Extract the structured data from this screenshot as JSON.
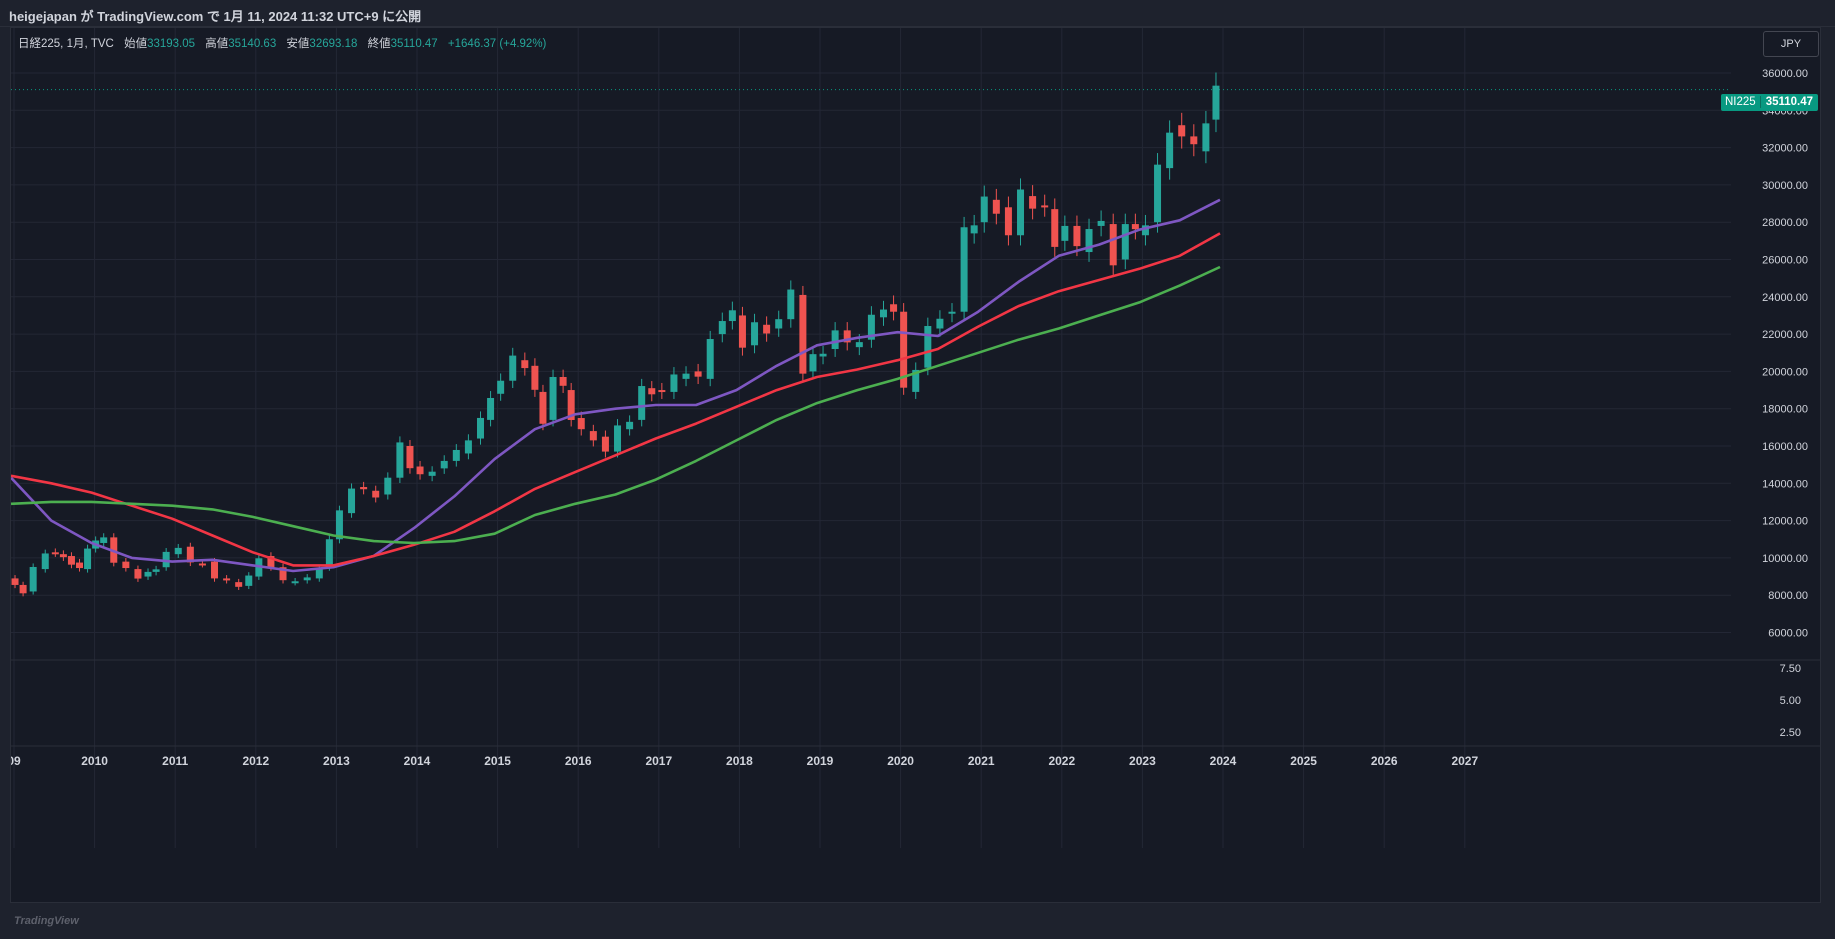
{
  "header": {
    "publisher_line": "heigejapan が TradingView.com で 1月 11, 2024 11:32 UTC+9 に公開"
  },
  "legend": {
    "symbol": "日経225, 1月, TVC",
    "open_label": "始値",
    "open_value": "33193.05",
    "high_label": "高値",
    "high_value": "35140.63",
    "low_label": "安値",
    "low_value": "32693.18",
    "close_label": "終値",
    "close_value": "35110.47",
    "change": "+1646.37 (+4.92%)"
  },
  "currency_button": "JPY",
  "price_label": {
    "symbol": "NI225",
    "value": "35110.47"
  },
  "footer": {
    "logo_text": "TradingView"
  },
  "colors": {
    "background": "#161a25",
    "up": "#26a69a",
    "down": "#ef5350",
    "ma_purple": "#7e57c2",
    "ma_red": "#f23645",
    "ma_green": "#4caf50",
    "text": "#d1d4dc",
    "grid": "#232735"
  },
  "chart_data": {
    "type": "candlestick",
    "x_axis_labels": [
      "09",
      "2010",
      "2011",
      "2012",
      "2013",
      "2014",
      "2015",
      "2016",
      "2017",
      "2018",
      "2019",
      "2020",
      "2021",
      "2022",
      "2023",
      "2024",
      "2025",
      "2026",
      "2027"
    ],
    "y_axis_labels": [
      "36000.00",
      "34000.00",
      "32000.00",
      "30000.00",
      "28000.00",
      "26000.00",
      "24000.00",
      "22000.00",
      "20000.00",
      "18000.00",
      "16000.00",
      "14000.00",
      "12000.00",
      "10000.00",
      "8000.00",
      "6000.00"
    ],
    "y_range": [
      4000,
      37500
    ],
    "lower_pane_labels": [
      "7.50",
      "5.00",
      "2.50"
    ],
    "close_series": [
      {
        "t": 2009.0,
        "v": 8900
      },
      {
        "t": 2009.2,
        "v": 8200
      },
      {
        "t": 2009.35,
        "v": 9400
      },
      {
        "t": 2009.5,
        "v": 10300
      },
      {
        "t": 2009.7,
        "v": 10100
      },
      {
        "t": 2009.9,
        "v": 9400
      },
      {
        "t": 2010.0,
        "v": 10500
      },
      {
        "t": 2010.2,
        "v": 11100
      },
      {
        "t": 2010.35,
        "v": 9800
      },
      {
        "t": 2010.5,
        "v": 9400
      },
      {
        "t": 2010.65,
        "v": 9000
      },
      {
        "t": 2010.85,
        "v": 9500
      },
      {
        "t": 2011.0,
        "v": 10200
      },
      {
        "t": 2011.15,
        "v": 10600
      },
      {
        "t": 2011.3,
        "v": 9700
      },
      {
        "t": 2011.45,
        "v": 9800
      },
      {
        "t": 2011.6,
        "v": 8900
      },
      {
        "t": 2011.75,
        "v": 8700
      },
      {
        "t": 2011.9,
        "v": 8500
      },
      {
        "t": 2012.0,
        "v": 9000
      },
      {
        "t": 2012.15,
        "v": 10100
      },
      {
        "t": 2012.3,
        "v": 9500
      },
      {
        "t": 2012.45,
        "v": 8700
      },
      {
        "t": 2012.6,
        "v": 8800
      },
      {
        "t": 2012.75,
        "v": 8900
      },
      {
        "t": 2012.9,
        "v": 9500
      },
      {
        "t": 2013.0,
        "v": 11000
      },
      {
        "t": 2013.15,
        "v": 12400
      },
      {
        "t": 2013.3,
        "v": 13800
      },
      {
        "t": 2013.45,
        "v": 13600
      },
      {
        "t": 2013.6,
        "v": 13400
      },
      {
        "t": 2013.75,
        "v": 14300
      },
      {
        "t": 2013.9,
        "v": 16000
      },
      {
        "t": 2014.0,
        "v": 14900
      },
      {
        "t": 2014.15,
        "v": 14400
      },
      {
        "t": 2014.3,
        "v": 14800
      },
      {
        "t": 2014.45,
        "v": 15200
      },
      {
        "t": 2014.6,
        "v": 15600
      },
      {
        "t": 2014.75,
        "v": 16400
      },
      {
        "t": 2014.9,
        "v": 17400
      },
      {
        "t": 2015.0,
        "v": 18800
      },
      {
        "t": 2015.15,
        "v": 19500
      },
      {
        "t": 2015.3,
        "v": 20600
      },
      {
        "t": 2015.45,
        "v": 20300
      },
      {
        "t": 2015.55,
        "v": 18900
      },
      {
        "t": 2015.65,
        "v": 17400
      },
      {
        "t": 2015.8,
        "v": 19700
      },
      {
        "t": 2015.9,
        "v": 19000
      },
      {
        "t": 2016.0,
        "v": 17500
      },
      {
        "t": 2016.15,
        "v": 16800
      },
      {
        "t": 2016.3,
        "v": 16500
      },
      {
        "t": 2016.45,
        "v": 15700
      },
      {
        "t": 2016.6,
        "v": 16900
      },
      {
        "t": 2016.75,
        "v": 17400
      },
      {
        "t": 2016.9,
        "v": 19100
      },
      {
        "t": 2017.0,
        "v": 19000
      },
      {
        "t": 2017.15,
        "v": 18900
      },
      {
        "t": 2017.3,
        "v": 19600
      },
      {
        "t": 2017.45,
        "v": 20000
      },
      {
        "t": 2017.6,
        "v": 19600
      },
      {
        "t": 2017.75,
        "v": 22000
      },
      {
        "t": 2017.9,
        "v": 22700
      },
      {
        "t": 2018.0,
        "v": 23000
      },
      {
        "t": 2018.15,
        "v": 21400
      },
      {
        "t": 2018.3,
        "v": 22500
      },
      {
        "t": 2018.45,
        "v": 22300
      },
      {
        "t": 2018.6,
        "v": 22800
      },
      {
        "t": 2018.75,
        "v": 24100
      },
      {
        "t": 2018.9,
        "v": 20000
      },
      {
        "t": 2019.0,
        "v": 20800
      },
      {
        "t": 2019.15,
        "v": 21200
      },
      {
        "t": 2019.3,
        "v": 22200
      },
      {
        "t": 2019.45,
        "v": 21300
      },
      {
        "t": 2019.6,
        "v": 21700
      },
      {
        "t": 2019.75,
        "v": 22900
      },
      {
        "t": 2019.9,
        "v": 23600
      },
      {
        "t": 2020.0,
        "v": 23200
      },
      {
        "t": 2020.15,
        "v": 18900
      },
      {
        "t": 2020.3,
        "v": 20200
      },
      {
        "t": 2020.45,
        "v": 22300
      },
      {
        "t": 2020.6,
        "v": 23100
      },
      {
        "t": 2020.75,
        "v": 23200
      },
      {
        "t": 2020.9,
        "v": 27400
      },
      {
        "t": 2021.0,
        "v": 28000
      },
      {
        "t": 2021.15,
        "v": 29200
      },
      {
        "t": 2021.3,
        "v": 28800
      },
      {
        "t": 2021.45,
        "v": 27300
      },
      {
        "t": 2021.6,
        "v": 29400
      },
      {
        "t": 2021.75,
        "v": 28900
      },
      {
        "t": 2021.9,
        "v": 28700
      },
      {
        "t": 2022.0,
        "v": 27000
      },
      {
        "t": 2022.15,
        "v": 27800
      },
      {
        "t": 2022.3,
        "v": 26400
      },
      {
        "t": 2022.45,
        "v": 27800
      },
      {
        "t": 2022.6,
        "v": 27900
      },
      {
        "t": 2022.75,
        "v": 26000
      },
      {
        "t": 2022.9,
        "v": 27900
      },
      {
        "t": 2023.0,
        "v": 27300
      },
      {
        "t": 2023.15,
        "v": 28000
      },
      {
        "t": 2023.3,
        "v": 30900
      },
      {
        "t": 2023.45,
        "v": 33200
      },
      {
        "t": 2023.6,
        "v": 32600
      },
      {
        "t": 2023.75,
        "v": 31800
      },
      {
        "t": 2023.9,
        "v": 33500
      },
      {
        "t": 2024.0,
        "v": 35110
      }
    ],
    "moving_averages": [
      {
        "name": "",
        "color": "#7e57c2",
        "points": [
          [
            2009.0,
            14300
          ],
          [
            2009.5,
            12000
          ],
          [
            2010.0,
            10800
          ],
          [
            2010.5,
            10000
          ],
          [
            2011.0,
            9800
          ],
          [
            2011.5,
            9900
          ],
          [
            2012.0,
            9600
          ],
          [
            2012.5,
            9300
          ],
          [
            2013.0,
            9500
          ],
          [
            2013.5,
            10100
          ],
          [
            2014.0,
            11600
          ],
          [
            2014.5,
            13300
          ],
          [
            2015.0,
            15300
          ],
          [
            2015.5,
            16900
          ],
          [
            2016.0,
            17700
          ],
          [
            2016.5,
            18000
          ],
          [
            2017.0,
            18200
          ],
          [
            2017.5,
            18200
          ],
          [
            2018.0,
            19000
          ],
          [
            2018.5,
            20300
          ],
          [
            2019.0,
            21400
          ],
          [
            2019.5,
            21800
          ],
          [
            2020.0,
            22100
          ],
          [
            2020.5,
            21900
          ],
          [
            2021.0,
            23200
          ],
          [
            2021.5,
            24800
          ],
          [
            2022.0,
            26200
          ],
          [
            2022.5,
            26800
          ],
          [
            2023.0,
            27600
          ],
          [
            2023.5,
            28100
          ],
          [
            2024.0,
            29200
          ]
        ]
      },
      {
        "name": "",
        "color": "#f23645",
        "points": [
          [
            2009.0,
            14400
          ],
          [
            2009.5,
            14000
          ],
          [
            2010.0,
            13500
          ],
          [
            2010.5,
            12800
          ],
          [
            2011.0,
            12100
          ],
          [
            2011.5,
            11200
          ],
          [
            2012.0,
            10300
          ],
          [
            2012.5,
            9600
          ],
          [
            2013.0,
            9600
          ],
          [
            2013.5,
            10100
          ],
          [
            2014.0,
            10700
          ],
          [
            2014.5,
            11400
          ],
          [
            2015.0,
            12500
          ],
          [
            2015.5,
            13700
          ],
          [
            2016.0,
            14600
          ],
          [
            2016.5,
            15500
          ],
          [
            2017.0,
            16400
          ],
          [
            2017.5,
            17200
          ],
          [
            2018.0,
            18100
          ],
          [
            2018.5,
            19000
          ],
          [
            2019.0,
            19700
          ],
          [
            2019.5,
            20100
          ],
          [
            2020.0,
            20600
          ],
          [
            2020.5,
            21200
          ],
          [
            2021.0,
            22400
          ],
          [
            2021.5,
            23500
          ],
          [
            2022.0,
            24300
          ],
          [
            2022.5,
            24900
          ],
          [
            2023.0,
            25500
          ],
          [
            2023.5,
            26200
          ],
          [
            2024.0,
            27400
          ]
        ]
      },
      {
        "name": "",
        "color": "#4caf50",
        "points": [
          [
            2009.0,
            12900
          ],
          [
            2009.5,
            13000
          ],
          [
            2010.0,
            13000
          ],
          [
            2010.5,
            12900
          ],
          [
            2011.0,
            12800
          ],
          [
            2011.5,
            12600
          ],
          [
            2012.0,
            12200
          ],
          [
            2012.5,
            11700
          ],
          [
            2013.0,
            11200
          ],
          [
            2013.5,
            10900
          ],
          [
            2014.0,
            10800
          ],
          [
            2014.5,
            10900
          ],
          [
            2015.0,
            11300
          ],
          [
            2015.5,
            12300
          ],
          [
            2016.0,
            12900
          ],
          [
            2016.5,
            13400
          ],
          [
            2017.0,
            14200
          ],
          [
            2017.5,
            15200
          ],
          [
            2018.0,
            16300
          ],
          [
            2018.5,
            17400
          ],
          [
            2019.0,
            18300
          ],
          [
            2019.5,
            19000
          ],
          [
            2020.0,
            19600
          ],
          [
            2020.5,
            20300
          ],
          [
            2021.0,
            21000
          ],
          [
            2021.5,
            21700
          ],
          [
            2022.0,
            22300
          ],
          [
            2022.5,
            23000
          ],
          [
            2023.0,
            23700
          ],
          [
            2023.5,
            24600
          ],
          [
            2024.0,
            25600
          ]
        ]
      }
    ]
  }
}
